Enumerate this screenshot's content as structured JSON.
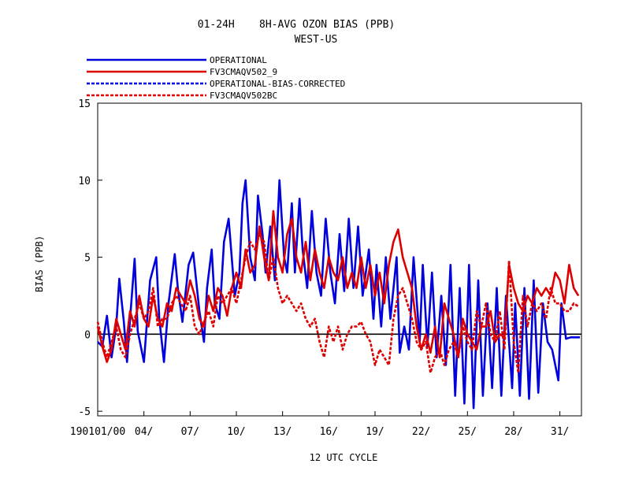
{
  "chart_data": {
    "type": "line",
    "title": "01-24H    8H-AVG OZON BIAS (PPB)",
    "subtitle": "WEST-US",
    "xlabel": "12 UTC CYCLE",
    "ylabel": "BIAS (PPB)",
    "ylim": [
      -5.3,
      15
    ],
    "xlim": [
      1,
      32.4
    ],
    "yticks": [
      -5,
      0,
      5,
      10,
      15
    ],
    "ytick_labels": [
      "-5",
      "0",
      "5",
      "10",
      "15"
    ],
    "xticks": [
      1,
      4,
      7,
      10,
      13,
      16,
      19,
      22,
      25,
      28,
      31
    ],
    "xtick_labels": [
      "190101/00",
      "04/",
      "07/",
      "10/",
      "13/",
      "16/",
      "19/",
      "22/",
      "25/",
      "28/",
      "31/"
    ],
    "zero_line": true,
    "grid": false,
    "legend_position": "top-left",
    "series": [
      {
        "name": "OPERATIONAL",
        "color": "#0000dd",
        "dash": "solid",
        "x": [
          1.0,
          1.3,
          1.6,
          1.9,
          2.2,
          2.4,
          2.7,
          2.9,
          3.1,
          3.4,
          3.6,
          4.0,
          4.4,
          4.8,
          5.0,
          5.3,
          5.6,
          6.0,
          6.2,
          6.5,
          6.9,
          7.2,
          7.6,
          7.9,
          8.1,
          8.4,
          8.6,
          8.9,
          9.2,
          9.5,
          9.9,
          10.2,
          10.4,
          10.6,
          10.9,
          11.2,
          11.4,
          11.7,
          11.9,
          12.2,
          12.5,
          12.8,
          13.1,
          13.3,
          13.6,
          13.8,
          14.1,
          14.3,
          14.6,
          14.9,
          15.2,
          15.5,
          15.8,
          16.1,
          16.4,
          16.7,
          17.0,
          17.3,
          17.6,
          17.9,
          18.2,
          18.6,
          18.9,
          19.1,
          19.4,
          19.7,
          20.0,
          20.4,
          20.6,
          20.9,
          21.2,
          21.5,
          21.9,
          22.1,
          22.4,
          22.7,
          23.0,
          23.3,
          23.6,
          23.9,
          24.2,
          24.5,
          24.8,
          25.1,
          25.4,
          25.7,
          26.0,
          26.3,
          26.6,
          26.9,
          27.2,
          27.5,
          27.9,
          28.1,
          28.4,
          28.7,
          29.0,
          29.3,
          29.6,
          29.9,
          30.2,
          30.5,
          30.9,
          31.1,
          31.4,
          31.7,
          32.0,
          32.3
        ],
        "y": [
          -0.5,
          -0.8,
          1.2,
          -1.5,
          0.5,
          3.6,
          0.8,
          -1.8,
          1.0,
          4.9,
          0.2,
          -1.8,
          3.5,
          5.0,
          1.0,
          -1.8,
          2.0,
          5.2,
          3.0,
          0.8,
          4.5,
          5.3,
          1.5,
          -0.5,
          3.0,
          5.5,
          2.0,
          1.0,
          6.0,
          7.5,
          2.5,
          4.0,
          8.5,
          10.0,
          5.0,
          3.5,
          9.0,
          6.5,
          4.0,
          7.0,
          3.5,
          10.0,
          5.0,
          4.0,
          8.5,
          4.0,
          8.8,
          5.5,
          3.0,
          8.0,
          4.0,
          2.5,
          7.5,
          4.0,
          2.0,
          6.5,
          2.8,
          7.5,
          3.0,
          7.0,
          2.5,
          5.5,
          1.0,
          4.5,
          0.5,
          5.0,
          1.0,
          5.0,
          -1.2,
          0.5,
          -1.0,
          5.0,
          -0.5,
          4.5,
          -0.8,
          4.0,
          -1.5,
          2.5,
          -2.0,
          4.5,
          -4.0,
          3.0,
          -4.5,
          4.5,
          -4.8,
          3.5,
          -4.0,
          2.0,
          -3.5,
          3.0,
          -4.0,
          2.5,
          -3.5,
          2.0,
          -4.0,
          3.0,
          -4.2,
          3.5,
          -3.8,
          2.0,
          -0.5,
          -1.0,
          -3.0,
          2.0,
          -0.3,
          -0.2,
          -0.2,
          -0.2
        ]
      },
      {
        "name": "FV3CMAQV502_9",
        "color": "#dd0000",
        "dash": "solid",
        "x": [
          1.0,
          1.3,
          1.6,
          1.9,
          2.2,
          2.5,
          2.8,
          3.1,
          3.4,
          3.7,
          4.0,
          4.3,
          4.6,
          4.9,
          5.2,
          5.5,
          5.8,
          6.1,
          6.4,
          6.7,
          7.0,
          7.3,
          7.6,
          7.9,
          8.2,
          8.5,
          8.8,
          9.1,
          9.4,
          9.7,
          10.0,
          10.3,
          10.6,
          10.9,
          11.2,
          11.5,
          11.8,
          12.1,
          12.4,
          12.7,
          13.0,
          13.3,
          13.6,
          13.9,
          14.2,
          14.5,
          14.8,
          15.1,
          15.4,
          15.7,
          16.0,
          16.3,
          16.6,
          16.9,
          17.2,
          17.5,
          17.8,
          18.1,
          18.4,
          18.7,
          19.0,
          19.3,
          19.6,
          19.9,
          20.2,
          20.5,
          20.8,
          21.1,
          21.4,
          21.7,
          22.0,
          22.3,
          22.6,
          22.9,
          23.2,
          23.5,
          23.8,
          24.1,
          24.4,
          24.7,
          25.0,
          25.3,
          25.6,
          25.9,
          26.2,
          26.5,
          26.8,
          27.1,
          27.4,
          27.7,
          28.0,
          28.3,
          28.6,
          28.9,
          29.2,
          29.5,
          29.8,
          30.1,
          30.4,
          30.7,
          31.0,
          31.3,
          31.6,
          31.9,
          32.2
        ],
        "y": [
          0.5,
          -0.8,
          -1.8,
          -1.0,
          1.0,
          0.0,
          -1.0,
          1.5,
          0.5,
          2.5,
          1.0,
          0.5,
          2.5,
          1.0,
          0.5,
          2.0,
          1.5,
          3.0,
          2.5,
          2.0,
          3.5,
          2.5,
          1.0,
          0.5,
          2.5,
          1.5,
          3.0,
          2.5,
          1.2,
          3.0,
          4.0,
          3.0,
          5.5,
          4.0,
          4.5,
          7.0,
          5.0,
          3.5,
          8.0,
          5.0,
          4.0,
          6.5,
          7.5,
          5.0,
          4.0,
          6.0,
          3.5,
          5.5,
          4.0,
          3.0,
          5.0,
          4.0,
          3.5,
          5.0,
          3.0,
          4.0,
          3.0,
          5.0,
          3.0,
          4.5,
          2.5,
          4.0,
          2.0,
          4.5,
          6.0,
          6.8,
          5.0,
          4.0,
          3.0,
          0.5,
          -1.0,
          0.0,
          -1.2,
          0.5,
          -1.5,
          2.0,
          1.0,
          0.0,
          -1.5,
          1.0,
          0.0,
          -0.5,
          -1.0,
          0.5,
          0.5,
          1.5,
          -0.5,
          0.0,
          -0.2,
          4.5,
          3.0,
          2.0,
          1.5,
          2.5,
          2.0,
          3.0,
          2.5,
          3.0,
          2.5,
          4.0,
          3.5,
          2.0,
          4.5,
          3.0,
          2.5
        ]
      },
      {
        "name": "OPERATIONAL-BIAS-CORRECTED",
        "color": "#0000dd",
        "dash": "dashed",
        "x": [],
        "y": []
      },
      {
        "name": "FV3CMAQV502BC",
        "color": "#dd0000",
        "dash": "dashed",
        "x": [
          1.0,
          1.3,
          1.6,
          1.9,
          2.2,
          2.5,
          2.8,
          3.1,
          3.4,
          3.7,
          4.0,
          4.3,
          4.6,
          4.9,
          5.2,
          5.5,
          5.8,
          6.1,
          6.4,
          6.7,
          7.0,
          7.3,
          7.6,
          7.9,
          8.2,
          8.5,
          8.8,
          9.1,
          9.4,
          9.7,
          10.0,
          10.3,
          10.6,
          10.9,
          11.2,
          11.5,
          11.8,
          12.1,
          12.4,
          12.7,
          13.0,
          13.3,
          13.6,
          13.9,
          14.2,
          14.5,
          14.8,
          15.1,
          15.4,
          15.7,
          16.0,
          16.3,
          16.6,
          16.9,
          17.2,
          17.5,
          17.8,
          18.1,
          18.4,
          18.7,
          19.0,
          19.3,
          19.6,
          19.9,
          20.2,
          20.5,
          20.8,
          21.1,
          21.4,
          21.7,
          22.0,
          22.3,
          22.6,
          22.9,
          23.2,
          23.5,
          23.8,
          24.1,
          24.4,
          24.7,
          25.0,
          25.3,
          25.6,
          25.9,
          26.2,
          26.5,
          26.8,
          27.1,
          27.4,
          27.7,
          28.0,
          28.3,
          28.6,
          28.9,
          29.2,
          29.5,
          29.8,
          30.1,
          30.4,
          30.7,
          31.0,
          31.3,
          31.6,
          31.9,
          32.2
        ],
        "y": [
          0.8,
          -0.5,
          -1.5,
          -0.5,
          0.5,
          -1.0,
          -1.5,
          0.0,
          1.0,
          2.0,
          1.0,
          1.5,
          3.0,
          0.5,
          1.0,
          1.0,
          2.0,
          2.5,
          2.0,
          1.5,
          2.5,
          0.5,
          0.0,
          0.8,
          1.5,
          0.5,
          2.5,
          2.0,
          2.5,
          3.0,
          2.0,
          3.5,
          5.0,
          6.0,
          5.5,
          6.5,
          6.0,
          3.5,
          5.0,
          3.0,
          2.0,
          2.5,
          2.0,
          1.5,
          2.0,
          1.0,
          0.5,
          1.0,
          -0.5,
          -1.5,
          0.5,
          -0.5,
          0.5,
          -1.0,
          0.0,
          0.5,
          0.5,
          0.8,
          0.0,
          -0.5,
          -2.0,
          -1.0,
          -1.5,
          -2.0,
          1.0,
          2.5,
          3.0,
          2.0,
          1.0,
          -0.5,
          -1.0,
          -0.5,
          -2.5,
          -1.5,
          -1.0,
          -2.0,
          -1.0,
          -0.5,
          -1.5,
          0.5,
          -0.5,
          -1.0,
          1.5,
          0.5,
          2.0,
          0.0,
          -0.5,
          1.5,
          -1.0,
          4.8,
          -0.5,
          -2.5,
          2.5,
          0.5,
          2.0,
          1.5,
          2.0,
          1.0,
          3.0,
          2.0,
          2.0,
          1.5,
          1.5,
          2.0,
          1.8
        ]
      }
    ]
  }
}
